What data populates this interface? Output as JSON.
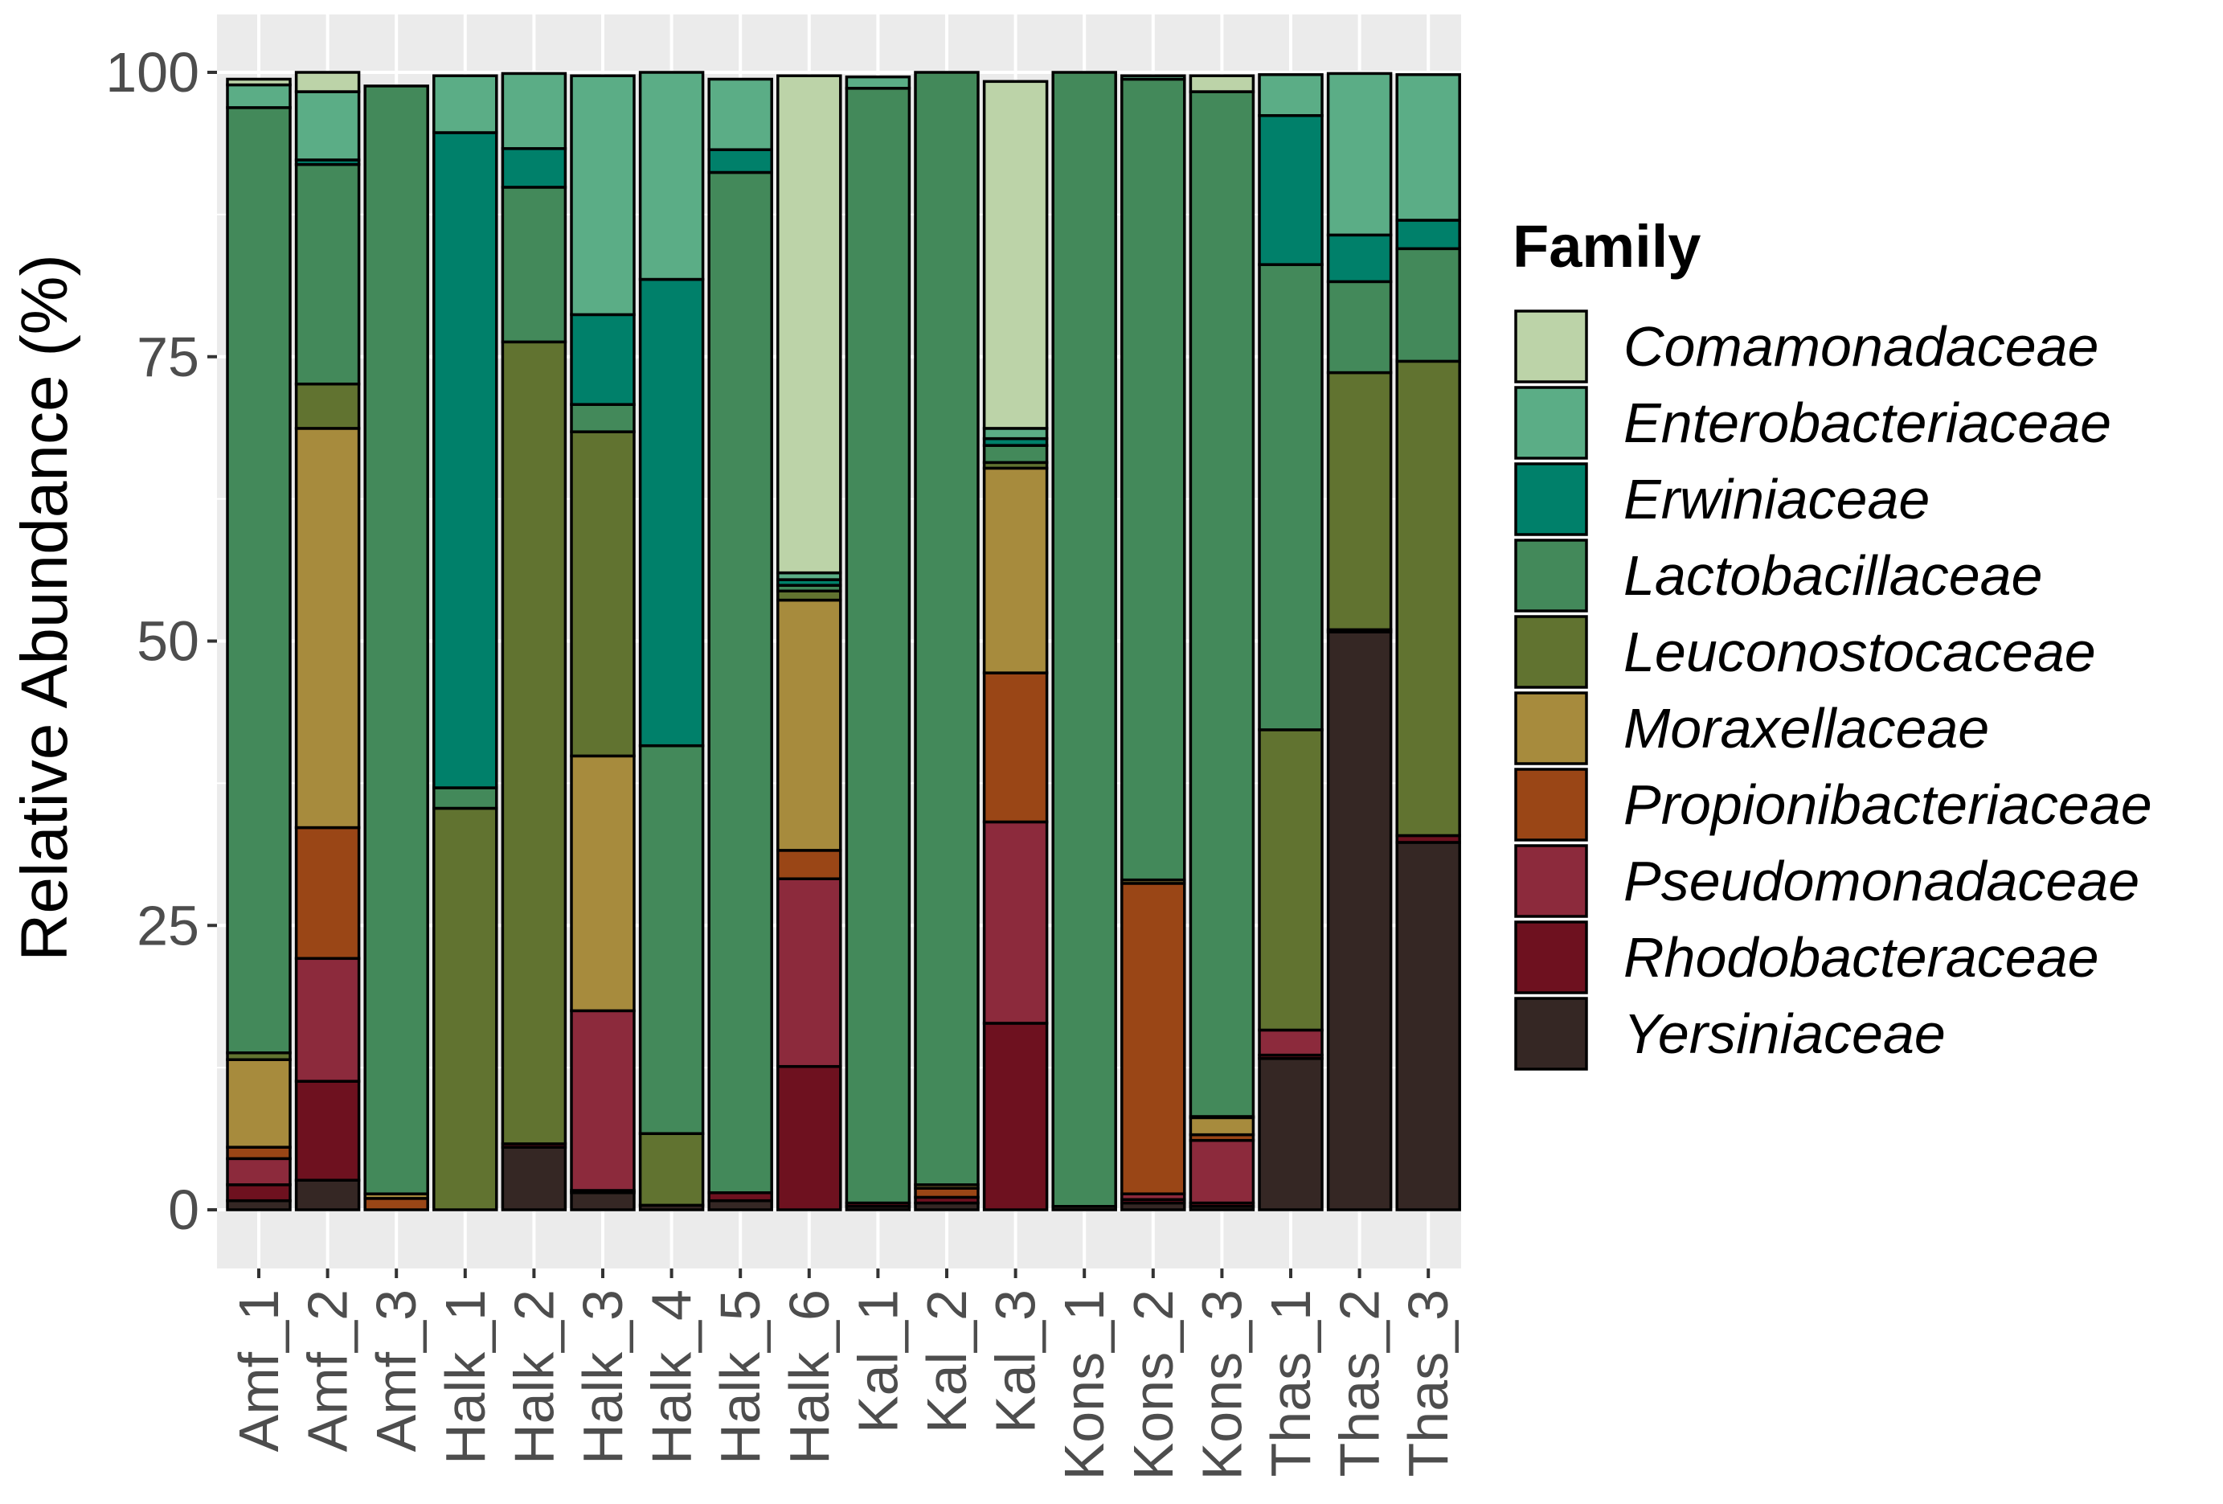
{
  "chart_data": {
    "type": "bar",
    "stacked": true,
    "title": "",
    "xlabel": "",
    "ylabel": "Relative Abundance (%)",
    "ylim": [
      0,
      100
    ],
    "yticks": [
      "0",
      "25",
      "50",
      "75",
      "100"
    ],
    "grid": true,
    "legend_position": "right",
    "legend_title": "Family",
    "categories": [
      "Amf_1",
      "Amf_2",
      "Amf_3",
      "Halk_1",
      "Halk_2",
      "Halk_3",
      "Halk_4",
      "Halk_5",
      "Halk_6",
      "Kal_1",
      "Kal_2",
      "Kal_3",
      "Kons_1",
      "Kons_2",
      "Kons_3",
      "Thas_1",
      "Thas_2",
      "Thas_3"
    ],
    "series": [
      {
        "name": "Comamonadaceae",
        "color": "#bcd3a8",
        "values": [
          0.5,
          1.7,
          0,
          0,
          0,
          0,
          0,
          0,
          43.7,
          0,
          0,
          30.5,
          0,
          0,
          1.4,
          0,
          0,
          0
        ]
      },
      {
        "name": "Enterobacteriaceae",
        "color": "#5bad86",
        "values": [
          2.0,
          6.0,
          0,
          5.0,
          6.6,
          21.0,
          18.2,
          6.2,
          0.6,
          1.0,
          0,
          0.9,
          0,
          0.3,
          0,
          3.6,
          14.2,
          12.8
        ]
      },
      {
        "name": "Erwiniaceae",
        "color": "#00806a",
        "values": [
          0,
          0.4,
          0,
          57.6,
          3.4,
          7.9,
          41.0,
          2.0,
          0.5,
          0,
          0,
          0.6,
          0,
          0,
          0,
          13.1,
          4.1,
          2.5
        ]
      },
      {
        "name": "Lactobacillaceae",
        "color": "#43895a",
        "values": [
          83.1,
          19.3,
          97.4,
          1.8,
          13.6,
          2.4,
          34.1,
          89.7,
          0.5,
          98.0,
          97.8,
          1.5,
          99.7,
          70.4,
          90.1,
          40.9,
          8.0,
          9.9
        ]
      },
      {
        "name": "Leuconostocaceae",
        "color": "#617330",
        "values": [
          0.6,
          3.9,
          0,
          35.3,
          70.5,
          28.5,
          6.3,
          0,
          0.8,
          0,
          0,
          0.5,
          0,
          0,
          0.1,
          26.4,
          22.6,
          41.7
        ]
      },
      {
        "name": "Moraxellaceae",
        "color": "#a78b3d",
        "values": [
          7.7,
          35.1,
          0.4,
          0,
          0,
          22.4,
          0,
          0,
          22.0,
          0,
          0.3,
          18.0,
          0,
          0.3,
          1.5,
          0,
          0,
          0
        ]
      },
      {
        "name": "Propionibacteriaceae",
        "color": "#9a4616",
        "values": [
          1.0,
          11.5,
          1.0,
          0,
          0,
          0,
          0,
          0,
          2.5,
          0,
          0.8,
          13.1,
          0,
          27.3,
          0.5,
          0,
          0,
          0
        ]
      },
      {
        "name": "Pseudomonadaceae",
        "color": "#8c2a3c",
        "values": [
          2.3,
          10.8,
          0,
          0,
          0,
          15.8,
          0,
          0,
          16.5,
          0,
          0,
          17.7,
          0,
          0.5,
          5.5,
          2.2,
          0,
          0
        ]
      },
      {
        "name": "Rhodobacteraceae",
        "color": "#6e111f",
        "values": [
          1.4,
          8.7,
          0,
          0,
          0.3,
          0.2,
          0,
          0.7,
          12.6,
          0.3,
          0.5,
          16.4,
          0,
          0.3,
          0.3,
          0.3,
          0.2,
          0.6
        ]
      },
      {
        "name": "Yersiniaceae",
        "color": "#352724",
        "values": [
          0.8,
          2.6,
          0,
          0,
          5.5,
          1.5,
          0.4,
          0.8,
          0,
          0.3,
          0.6,
          0,
          0.3,
          0.6,
          0.3,
          13.3,
          50.8,
          32.3
        ]
      }
    ]
  }
}
